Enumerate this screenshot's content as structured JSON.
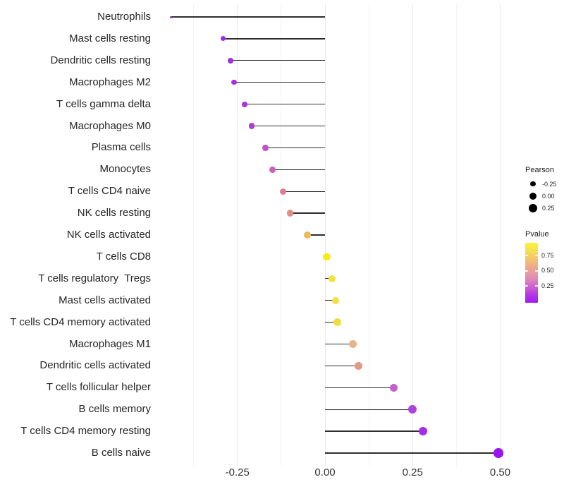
{
  "chart_data": {
    "type": "lollipop",
    "orientation": "horizontal",
    "title": "",
    "xlabel": "",
    "ylabel": "",
    "size_encoding": "Pearson",
    "color_encoding": "Pvalue",
    "xlim": [
      -0.49,
      0.55
    ],
    "grid": "vertical major+minor light gray on white, no axis lines",
    "x_ticks": [
      {
        "label": "-0.25",
        "value": -0.25
      },
      {
        "label": "0.00",
        "value": 0
      },
      {
        "label": "0.25",
        "value": 0.25
      },
      {
        "label": "0.50",
        "value": 0.5
      }
    ],
    "x_minor_gridlines": [
      -0.375,
      -0.125,
      0.125,
      0.375
    ],
    "points": [
      {
        "label": "Neutrophils",
        "pearson": -0.44,
        "pvalue_approx": 0.1,
        "color": "#9733D9"
      },
      {
        "label": "Mast cells resting",
        "pearson": -0.29,
        "pvalue_approx": 0.09,
        "color": "#A02BE4"
      },
      {
        "label": "Dendritic cells resting",
        "pearson": -0.27,
        "pvalue_approx": 0.09,
        "color": "#A42FE0"
      },
      {
        "label": "Macrophages M2",
        "pearson": -0.26,
        "pvalue_approx": 0.1,
        "color": "#A631DE"
      },
      {
        "label": "T cells gamma delta",
        "pearson": -0.23,
        "pvalue_approx": 0.11,
        "color": "#A935DC"
      },
      {
        "label": "Macrophages M0",
        "pearson": -0.21,
        "pvalue_approx": 0.13,
        "color": "#AE3BD6"
      },
      {
        "label": "Plasma cells",
        "pearson": -0.17,
        "pvalue_approx": 0.21,
        "color": "#C253C6"
      },
      {
        "label": "Monocytes",
        "pearson": -0.15,
        "pvalue_approx": 0.25,
        "color": "#CC61BB"
      },
      {
        "label": "T cells CD4 naive",
        "pearson": -0.12,
        "pvalue_approx": 0.4,
        "color": "#DC7F96"
      },
      {
        "label": "NK cells resting",
        "pearson": -0.1,
        "pvalue_approx": 0.45,
        "color": "#DE8F84"
      },
      {
        "label": "NK cells activated",
        "pearson": -0.05,
        "pvalue_approx": 0.68,
        "color": "#EBBC5E"
      },
      {
        "label": "T cells CD8",
        "pearson": 0.005,
        "pvalue_approx": 0.93,
        "color": "#F6EC13"
      },
      {
        "label": "T cells regulatory  Tregs",
        "pearson": 0.02,
        "pvalue_approx": 0.88,
        "color": "#F1E339"
      },
      {
        "label": "Mast cells activated",
        "pearson": 0.03,
        "pvalue_approx": 0.86,
        "color": "#F2DF45"
      },
      {
        "label": "T cells CD4 memory activated",
        "pearson": 0.035,
        "pvalue_approx": 0.86,
        "color": "#F1DC48"
      },
      {
        "label": "Macrophages M1",
        "pearson": 0.08,
        "pvalue_approx": 0.64,
        "color": "#EAB287"
      },
      {
        "label": "Dendritic cells activated",
        "pearson": 0.095,
        "pvalue_approx": 0.49,
        "color": "#E29A84"
      },
      {
        "label": "T cells follicular helper",
        "pearson": 0.196,
        "pvalue_approx": 0.23,
        "color": "#C35FC9"
      },
      {
        "label": "B cells memory",
        "pearson": 0.25,
        "pvalue_approx": 0.13,
        "color": "#AE42DC"
      },
      {
        "label": "T cells CD4 memory resting",
        "pearson": 0.28,
        "pvalue_approx": 0.06,
        "color": "#A52CE8"
      },
      {
        "label": "B cells naive",
        "pearson": 0.495,
        "pvalue_approx": 0.02,
        "color": "#9A14EF"
      }
    ],
    "legend": {
      "position": "right",
      "size": {
        "title": "Pearson",
        "dot_color": "#000000",
        "items": [
          {
            "label": "-0.25",
            "value": -0.25
          },
          {
            "label": "0.00",
            "value": 0
          },
          {
            "label": "0.25",
            "value": 0.25
          }
        ]
      },
      "color": {
        "title": "Pvalue",
        "ticks": [
          {
            "label": "0.75",
            "pos": 0.215
          },
          {
            "label": "0.50",
            "pos": 0.47
          },
          {
            "label": "0.25",
            "pos": 0.72
          }
        ],
        "gradient": [
          {
            "offset": 0,
            "color": "#FBF535"
          },
          {
            "offset": 0.15,
            "color": "#F7DB55"
          },
          {
            "offset": 0.27,
            "color": "#F3C46F"
          },
          {
            "offset": 0.42,
            "color": "#ECA591"
          },
          {
            "offset": 0.52,
            "color": "#E699A7"
          },
          {
            "offset": 0.64,
            "color": "#DA7FBF"
          },
          {
            "offset": 0.74,
            "color": "#CB5FD2"
          },
          {
            "offset": 0.87,
            "color": "#B236E6"
          },
          {
            "offset": 1,
            "color": "#A01BF4"
          }
        ]
      }
    }
  }
}
